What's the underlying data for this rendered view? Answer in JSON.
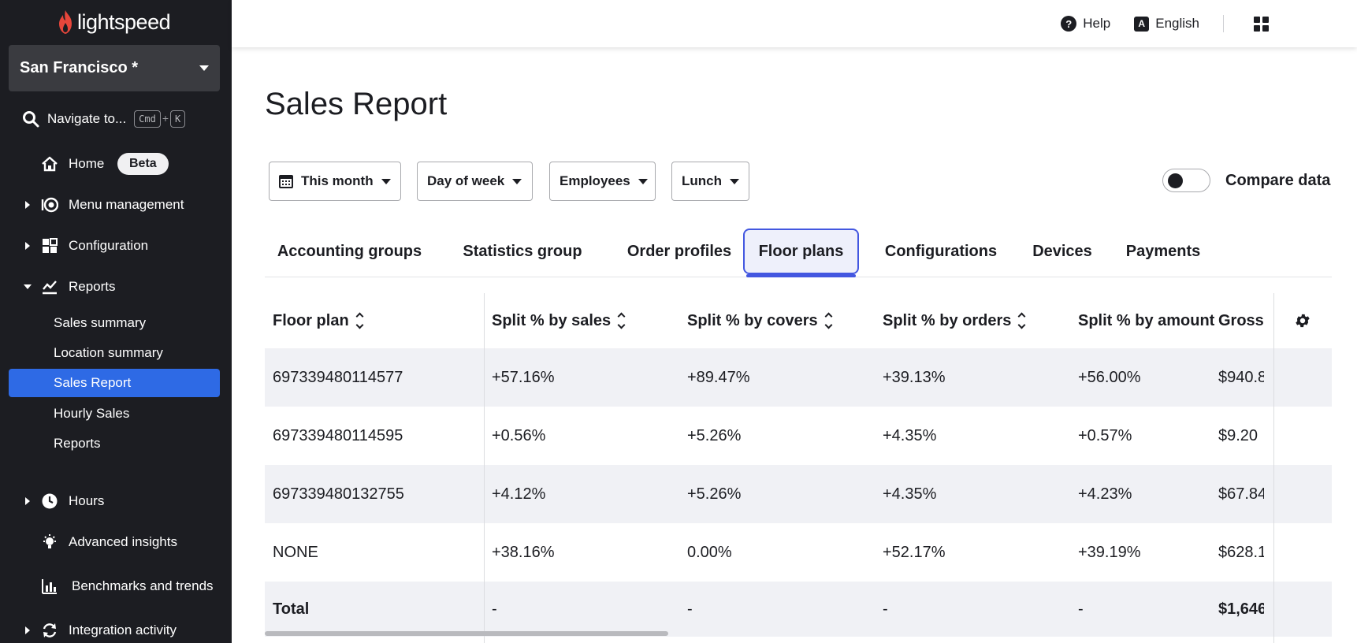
{
  "sidebar": {
    "logo_text": "lightspeed",
    "location": "San Francisco *",
    "navigate_label": "Navigate to...",
    "kbd_cmd": "Cmd",
    "kbd_plus": "+",
    "kbd_k": "K",
    "home": "Home",
    "beta": "Beta",
    "menu_management": "Menu management",
    "configuration": "Configuration",
    "reports": "Reports",
    "sub_items": [
      "Sales summary",
      "Location summary",
      "Sales Report",
      "Hourly Sales",
      "Reports"
    ],
    "hours": "Hours",
    "advanced_insights": "Advanced insights",
    "benchmarks": "Benchmarks and trends",
    "integration": "Integration activity"
  },
  "topbar": {
    "help": "Help",
    "help_glyph": "?",
    "language": "English",
    "lang_glyph": "A"
  },
  "page": {
    "title": "Sales Report",
    "filters": {
      "period": "This month",
      "grouping": "Day of week",
      "employees": "Employees",
      "shift": "Lunch"
    },
    "compare_label": "Compare data",
    "compare_on": false
  },
  "tabs": [
    "Accounting groups",
    "Statistics group",
    "Order profiles",
    "Floor plans",
    "Configurations",
    "Devices",
    "Payments"
  ],
  "active_tab": "Floor plans",
  "table": {
    "headers": [
      "Floor plan",
      "Split % by sales",
      "Split % by covers",
      "Split % by orders",
      "Split % by amount",
      "Gross s"
    ],
    "rows": [
      [
        "697339480114577",
        "+57.16%",
        "+89.47%",
        "+39.13%",
        "+56.00%",
        "$940.8"
      ],
      [
        "697339480114595",
        "+0.56%",
        "+5.26%",
        "+4.35%",
        "+0.57%",
        "$9.20"
      ],
      [
        "697339480132755",
        "+4.12%",
        "+5.26%",
        "+4.35%",
        "+4.23%",
        "$67.84"
      ],
      [
        "NONE",
        "+38.16%",
        "0.00%",
        "+52.17%",
        "+39.19%",
        "$628.1"
      ]
    ],
    "total": [
      "Total",
      "-",
      "-",
      "-",
      "-",
      "$1,646"
    ]
  },
  "colors": {
    "sidebar_bg": "#1c1d22",
    "active_item": "#2e6ae5",
    "tab_accent": "#4357e0",
    "row_alt": "#f0f1f5",
    "brand": "#e8463b"
  }
}
